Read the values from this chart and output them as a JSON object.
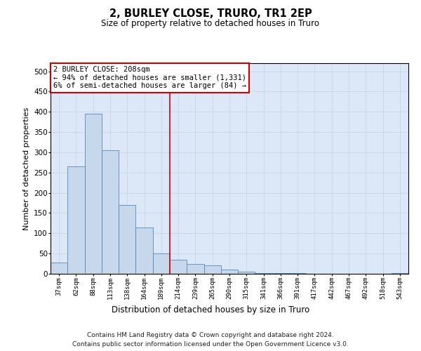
{
  "title": "2, BURLEY CLOSE, TRURO, TR1 2EP",
  "subtitle": "Size of property relative to detached houses in Truro",
  "xlabel": "Distribution of detached houses by size in Truro",
  "ylabel": "Number of detached properties",
  "bin_labels": [
    "37sqm",
    "62sqm",
    "88sqm",
    "113sqm",
    "138sqm",
    "164sqm",
    "189sqm",
    "214sqm",
    "239sqm",
    "265sqm",
    "290sqm",
    "315sqm",
    "341sqm",
    "366sqm",
    "391sqm",
    "417sqm",
    "442sqm",
    "467sqm",
    "492sqm",
    "518sqm",
    "543sqm"
  ],
  "bar_values": [
    27,
    265,
    395,
    305,
    170,
    115,
    50,
    35,
    25,
    20,
    10,
    5,
    2,
    1,
    1,
    0,
    0,
    0,
    0,
    0,
    2
  ],
  "bar_color": "#c8d8ec",
  "bar_edge_color": "#5588bb",
  "vline_color": "#cc0000",
  "vline_x": 6.5,
  "annotation_text": "2 BURLEY CLOSE: 208sqm\n← 94% of detached houses are smaller (1,331)\n6% of semi-detached houses are larger (84) →",
  "annotation_box_color": "#ffffff",
  "annotation_box_edge_color": "#cc0000",
  "grid_color": "#c8d4e8",
  "background_color": "#dce8f8",
  "footer_line1": "Contains HM Land Registry data © Crown copyright and database right 2024.",
  "footer_line2": "Contains public sector information licensed under the Open Government Licence v3.0.",
  "ylim": [
    0,
    520
  ],
  "yticks": [
    0,
    50,
    100,
    150,
    200,
    250,
    300,
    350,
    400,
    450,
    500
  ]
}
